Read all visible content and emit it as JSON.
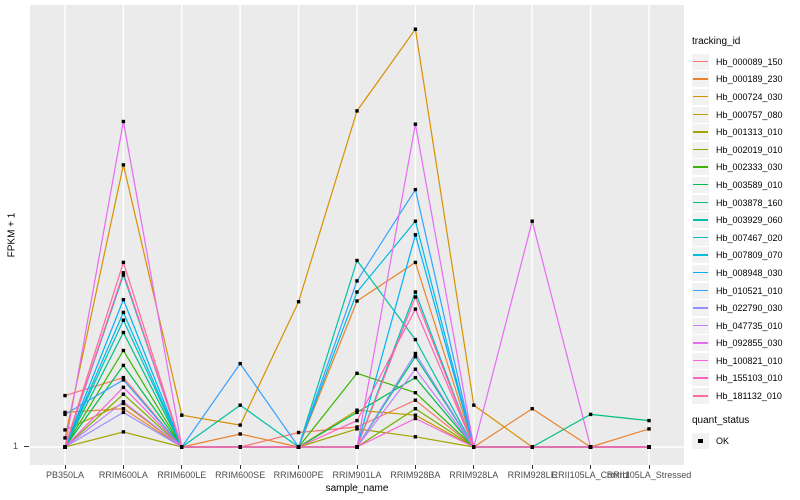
{
  "figure": {
    "y_axis": {
      "title": "FPKM + 1",
      "tick_label": "1"
    },
    "x_axis": {
      "title": "sample_name"
    },
    "legend": {
      "tracking_title": "tracking_id",
      "quant_title": "quant_status",
      "quant_ok_label": "OK"
    },
    "colors": {
      "panel_background": "#EBEBEB",
      "gridline": "#FFFFFF",
      "marker": "#000000",
      "tick_text": "#4D4D4D",
      "legend_key_background": "#F2F2F2"
    }
  },
  "chart_data": {
    "type": "line",
    "title": "",
    "xlabel": "sample_name",
    "ylabel": "FPKM + 1",
    "yscale": "log10",
    "ytick_labels": [
      1
    ],
    "grid": "vertical-at-categories",
    "legend_position": "right",
    "marker": "filled-black-square",
    "quant_status_values": [
      "OK"
    ],
    "categories": [
      "PB350LA",
      "RRIM600LA",
      "RRIM600LE",
      "RRIM600SE",
      "RRIM600PE",
      "RRIM901LA",
      "RRIM928BA",
      "RRIM928LA",
      "RRIM928LE",
      "RRII105LA_Control",
      "RRII105LA_Stressed"
    ],
    "series": [
      {
        "name": "Hb_000089_150",
        "color": "#F8766D",
        "values": [
          2.2,
          2.9,
          1,
          1,
          1.25,
          1.36,
          2.05,
          1,
          1,
          1,
          1
        ]
      },
      {
        "name": "Hb_000189_230",
        "color": "#EA8331",
        "values": [
          1.7,
          1.8,
          1,
          1.22,
          1,
          9.4,
          17,
          1,
          1.8,
          1,
          1.32
        ]
      },
      {
        "name": "Hb_000724_030",
        "color": "#D89000",
        "values": [
          1.15,
          76,
          1.63,
          1.4,
          9.3,
          174,
          610,
          1.9,
          1,
          1,
          1
        ]
      },
      {
        "name": "Hb_000757_080",
        "color": "#C09B00",
        "values": [
          1.3,
          1.95,
          1,
          1,
          1,
          1.76,
          1.63,
          1,
          1,
          1,
          1
        ]
      },
      {
        "name": "Hb_001313_010",
        "color": "#A3A500",
        "values": [
          1,
          1.26,
          1,
          1,
          1,
          1.32,
          1.17,
          1,
          1,
          1,
          1
        ]
      },
      {
        "name": "Hb_002019_010",
        "color": "#7CAE00",
        "values": [
          1,
          2.25,
          1,
          1,
          1,
          1,
          1.8,
          1,
          1,
          1,
          1
        ]
      },
      {
        "name": "Hb_002333_030",
        "color": "#39B600",
        "values": [
          1,
          4.4,
          1,
          1,
          1,
          3.1,
          2.3,
          1,
          1,
          1,
          1
        ]
      },
      {
        "name": "Hb_003589_010",
        "color": "#00BB4E",
        "values": [
          1,
          3.5,
          1,
          1,
          1,
          1.7,
          2.9,
          1,
          1,
          1,
          1
        ]
      },
      {
        "name": "Hb_003878_160",
        "color": "#00BF7D",
        "values": [
          1,
          5.8,
          1,
          1,
          1,
          1,
          4.0,
          1,
          1,
          1.65,
          1.5
        ]
      },
      {
        "name": "Hb_003929_060",
        "color": "#00C1A3",
        "values": [
          1,
          14,
          1,
          1.9,
          1,
          17.5,
          5.2,
          1,
          1,
          1,
          1
        ]
      },
      {
        "name": "Hb_007467_020",
        "color": "#00BFC4",
        "values": [
          1,
          7.0,
          1,
          1,
          1,
          1,
          10.8,
          1,
          1,
          1,
          1
        ]
      },
      {
        "name": "Hb_007809_070",
        "color": "#00BAE0",
        "values": [
          1,
          7.9,
          1,
          1,
          1,
          10.8,
          32,
          1,
          1,
          1,
          1
        ]
      },
      {
        "name": "Hb_008948_030",
        "color": "#00B0F6",
        "values": [
          1,
          9.6,
          1,
          1,
          1,
          1,
          26,
          1,
          1,
          1,
          1
        ]
      },
      {
        "name": "Hb_010521_010",
        "color": "#35A2FF",
        "values": [
          1.65,
          2.8,
          1,
          3.6,
          1,
          12.8,
          52,
          1,
          1,
          1,
          1
        ]
      },
      {
        "name": "Hb_022790_030",
        "color": "#9590FF",
        "values": [
          1,
          1.7,
          1,
          1,
          1,
          1,
          4.2,
          1,
          1,
          1,
          1
        ]
      },
      {
        "name": "Hb_047735_010",
        "color": "#C77CFF",
        "values": [
          1,
          2.0,
          1,
          1,
          1,
          1,
          3.3,
          1,
          1,
          1,
          1
        ]
      },
      {
        "name": "Hb_092855_030",
        "color": "#E76BF3",
        "values": [
          1,
          148,
          1,
          1,
          1,
          1,
          142,
          1,
          32,
          1,
          1
        ]
      },
      {
        "name": "Hb_100821_010",
        "color": "#FA62DB",
        "values": [
          1,
          2.5,
          1,
          1,
          1,
          1,
          1.55,
          1,
          1,
          1,
          1
        ]
      },
      {
        "name": "Hb_155103_010",
        "color": "#FF62BC",
        "values": [
          1,
          14.5,
          1,
          1,
          1,
          1.5,
          8.3,
          1,
          1,
          1,
          1
        ]
      },
      {
        "name": "Hb_181132_010",
        "color": "#FF6A98",
        "values": [
          1,
          17,
          1,
          1,
          1,
          1,
          10,
          1,
          1,
          1,
          1
        ]
      }
    ]
  }
}
